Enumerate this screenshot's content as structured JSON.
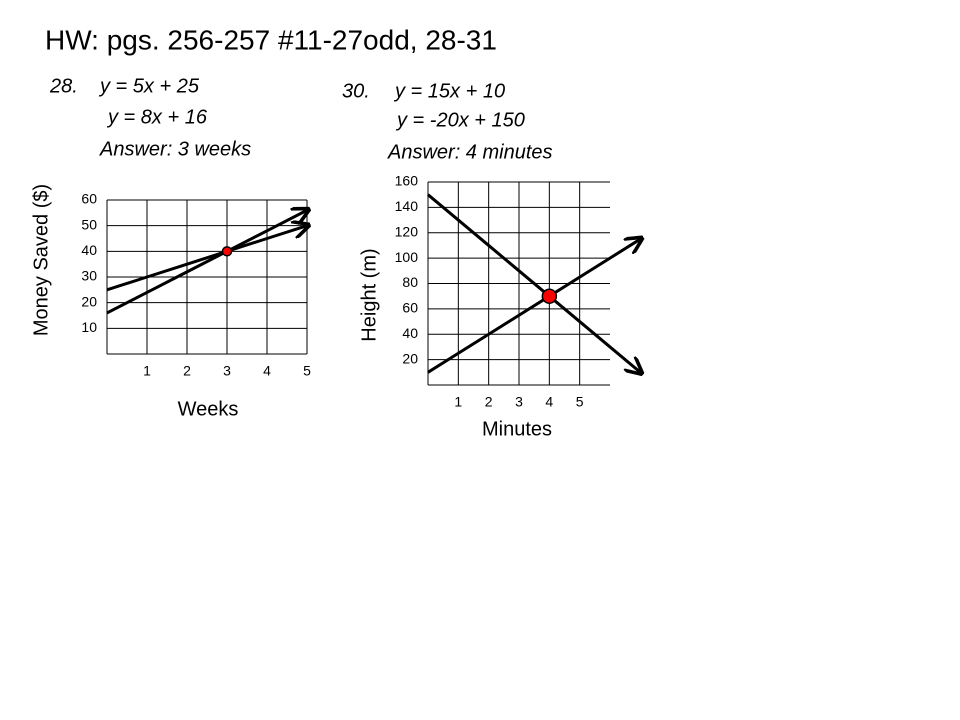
{
  "title": "HW:  pgs. 256-257 #11-27odd, 28-31",
  "chart_data": [
    {
      "type": "line",
      "problem": "28.",
      "answer": "Answer:  3 weeks",
      "x_label": "Weeks",
      "y_label": "Money Saved ($)",
      "x": [
        0,
        1,
        2,
        3,
        4,
        5
      ],
      "series": [
        {
          "name": "y = 5x + 25",
          "color": "#000000",
          "values": [
            25,
            30,
            35,
            40,
            45,
            50
          ]
        },
        {
          "name": "y = 8x + 16",
          "color": "#000000",
          "values": [
            16,
            24,
            32,
            40,
            48,
            56
          ]
        }
      ],
      "intersection": {
        "x": 3,
        "y": 40,
        "color": "#ff0000"
      },
      "xlim": [
        0,
        5
      ],
      "xticks": [
        1,
        2,
        3,
        4,
        5
      ],
      "ylim": [
        0,
        60
      ],
      "yticks": [
        10,
        20,
        30,
        40,
        50,
        60
      ],
      "grid": true
    },
    {
      "type": "line",
      "problem": "30.",
      "answer": "Answer:  4 minutes",
      "x_label": "Minutes",
      "y_label": "Height (m)",
      "x": [
        0,
        1,
        2,
        3,
        4,
        5,
        6,
        7
      ],
      "series": [
        {
          "name": "y = 15x + 10",
          "color": "#000000",
          "values": [
            10,
            25,
            40,
            55,
            70,
            85,
            100,
            115
          ]
        },
        {
          "name": "y = -20x + 150",
          "color": "#000000",
          "values": [
            150,
            130,
            110,
            90,
            70,
            50,
            30,
            10
          ]
        }
      ],
      "intersection": {
        "x": 4,
        "y": 70,
        "color": "#ff0000"
      },
      "xlim": [
        0,
        6
      ],
      "xticks": [
        1,
        2,
        3,
        4,
        5
      ],
      "ylim": [
        0,
        160
      ],
      "yticks": [
        20,
        40,
        60,
        80,
        100,
        120,
        140,
        160
      ],
      "grid": true
    }
  ]
}
